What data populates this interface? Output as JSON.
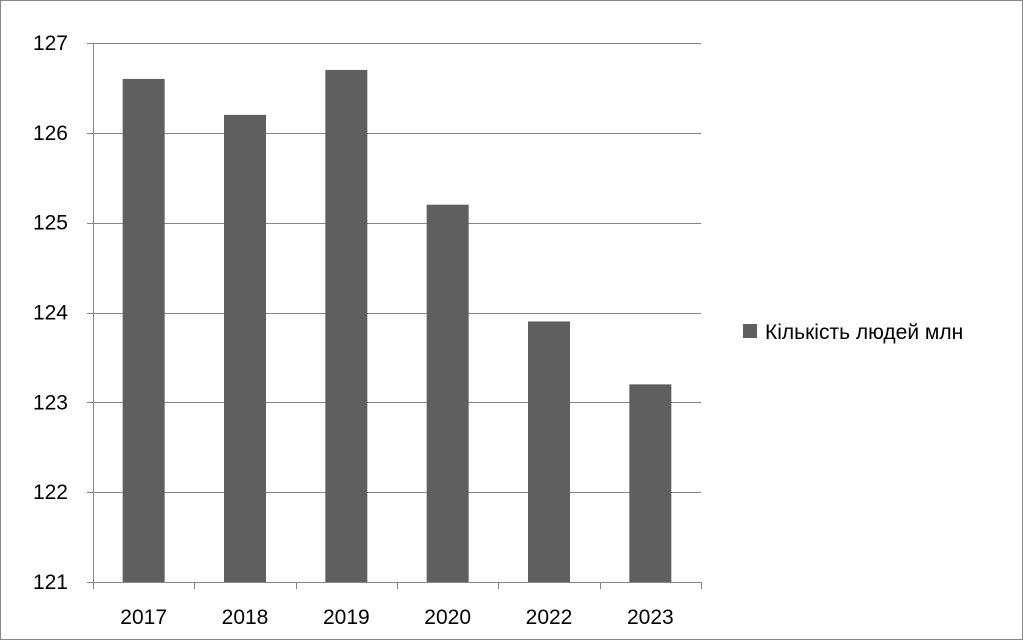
{
  "chart_data": {
    "type": "bar",
    "title": "",
    "xlabel": "",
    "ylabel": "",
    "categories": [
      "2017",
      "2018",
      "2019",
      "2020",
      "2022",
      "2023"
    ],
    "series": [
      {
        "name": "Кількість людей млн",
        "values": [
          126.6,
          126.2,
          126.7,
          125.2,
          123.9,
          123.2
        ]
      }
    ],
    "ylim": [
      121,
      127
    ],
    "yticks": [
      "121",
      "122",
      "123",
      "124",
      "125",
      "126",
      "127"
    ],
    "grid": true,
    "legend_position": "right",
    "bar_color": "#5f5f5f",
    "grid_color": "#868686",
    "axis_color": "#868686"
  }
}
